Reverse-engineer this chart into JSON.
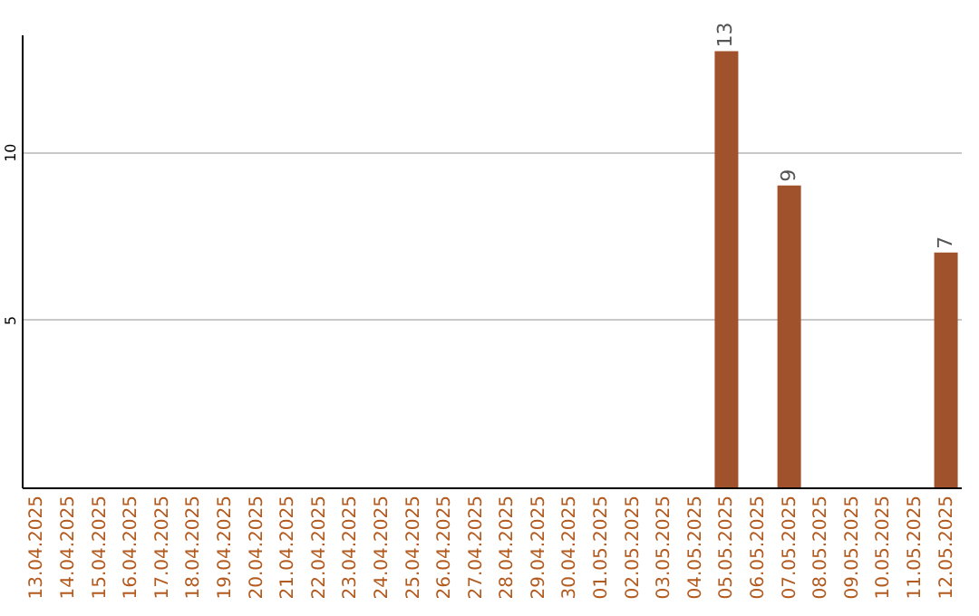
{
  "chart_data": {
    "type": "bar",
    "categories": [
      "13.04.2025",
      "14.04.2025",
      "15.04.2025",
      "16.04.2025",
      "17.04.2025",
      "18.04.2025",
      "19.04.2025",
      "20.04.2025",
      "21.04.2025",
      "22.04.2025",
      "23.04.2025",
      "24.04.2025",
      "25.04.2025",
      "26.04.2025",
      "27.04.2025",
      "28.04.2025",
      "29.04.2025",
      "30.04.2025",
      "01.05.2025",
      "02.05.2025",
      "03.05.2025",
      "04.05.2025",
      "05.05.2025",
      "06.05.2025",
      "07.05.2025",
      "08.05.2025",
      "09.05.2025",
      "10.05.2025",
      "11.05.2025",
      "12.05.2025"
    ],
    "values": [
      null,
      null,
      null,
      null,
      null,
      null,
      null,
      null,
      null,
      null,
      null,
      null,
      null,
      null,
      null,
      null,
      null,
      null,
      null,
      null,
      null,
      null,
      13,
      null,
      9,
      null,
      null,
      null,
      null,
      7
    ],
    "color": "#a0522d",
    "ylim": [
      0,
      13.5
    ],
    "yticks": [
      5,
      10
    ],
    "grid": "y",
    "data_labels": true
  }
}
